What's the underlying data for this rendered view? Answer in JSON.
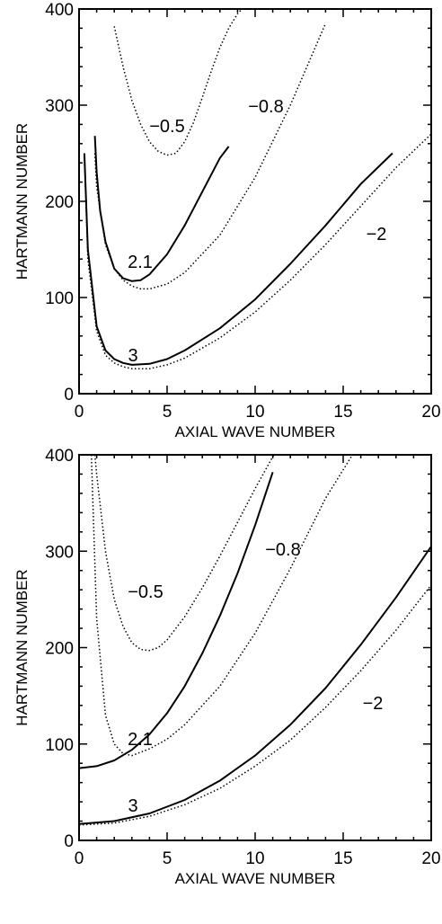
{
  "chart_data": [
    {
      "type": "line",
      "xlabel": "AXIAL WAVE NUMBER",
      "ylabel": "HARTMANN NUMBER",
      "xlim": [
        0,
        20
      ],
      "ylim": [
        0,
        400
      ],
      "xticks": [
        "0",
        "5",
        "10",
        "15",
        "20"
      ],
      "yticks": [
        "0",
        "100",
        "200",
        "300",
        "400"
      ],
      "grid": false,
      "series": [
        {
          "name": "-0.5",
          "style": "dotted",
          "x": [
            2.0,
            2.5,
            3.0,
            3.5,
            4.0,
            4.5,
            5.0,
            5.5,
            6.0,
            6.5,
            7.0,
            7.5,
            8.0,
            8.5,
            9.0,
            9.5
          ],
          "y": [
            382,
            340,
            305,
            280,
            262,
            252,
            248,
            250,
            262,
            282,
            308,
            335,
            360,
            380,
            395,
            405
          ]
        },
        {
          "name": "2.1",
          "style": "solid",
          "x": [
            0.9,
            1.0,
            1.2,
            1.5,
            2.0,
            2.5,
            3.0,
            3.5,
            4.0,
            5.0,
            6.0,
            7.0,
            8.0,
            8.5
          ],
          "y": [
            268,
            230,
            190,
            158,
            130,
            120,
            117,
            118,
            124,
            145,
            175,
            210,
            245,
            257
          ]
        },
        {
          "name": "-0.8",
          "style": "dotted",
          "x": [
            0.9,
            1.0,
            1.5,
            2.0,
            2.5,
            3.0,
            3.5,
            4.0,
            5.0,
            6.0,
            8.0,
            10.0,
            12.0,
            14.0
          ],
          "y": [
            250,
            215,
            155,
            130,
            118,
            112,
            109,
            109,
            114,
            126,
            165,
            225,
            300,
            385
          ]
        },
        {
          "name": "3",
          "style": "solid",
          "x": [
            0.3,
            0.5,
            1.0,
            1.5,
            2.0,
            2.5,
            3.0,
            4.0,
            5.0,
            6.0,
            8.0,
            10.0,
            12.0,
            14.0,
            16.0,
            17.8
          ],
          "y": [
            250,
            150,
            70,
            45,
            36,
            32,
            30,
            31,
            36,
            45,
            68,
            98,
            135,
            175,
            218,
            250
          ]
        },
        {
          "name": "-2",
          "style": "dotted",
          "x": [
            0.3,
            0.5,
            1.0,
            1.5,
            2.0,
            2.5,
            3.0,
            4.0,
            5.0,
            6.0,
            8.0,
            10.0,
            12.0,
            14.0,
            16.0,
            18.0,
            20.0
          ],
          "y": [
            250,
            140,
            65,
            40,
            32,
            28,
            26,
            26,
            30,
            37,
            58,
            85,
            118,
            155,
            195,
            235,
            270
          ]
        }
      ],
      "annotations": [
        "−0.5",
        "−0.8",
        "2.1",
        "−2",
        "3"
      ]
    },
    {
      "type": "line",
      "xlabel": "AXIAL WAVE NUMBER",
      "ylabel": "HARTMANN NUMBER",
      "xlim": [
        0,
        20
      ],
      "ylim": [
        0,
        400
      ],
      "xticks": [
        "0",
        "5",
        "10",
        "15",
        "20"
      ],
      "yticks": [
        "0",
        "100",
        "200",
        "300",
        "400"
      ],
      "grid": false,
      "series": [
        {
          "name": "-0.5",
          "style": "dotted",
          "x": [
            0.9,
            1.0,
            1.5,
            2.0,
            2.5,
            3.0,
            3.5,
            4.0,
            4.5,
            5.0,
            6.0,
            7.0,
            8.0,
            9.0,
            10.0,
            11.0,
            11.5
          ],
          "y": [
            400,
            380,
            300,
            250,
            222,
            205,
            198,
            197,
            200,
            208,
            232,
            262,
            295,
            330,
            365,
            398,
            410
          ]
        },
        {
          "name": "2.1",
          "style": "solid",
          "x": [
            0,
            1,
            2,
            3,
            4,
            5,
            6,
            7,
            8,
            9,
            10,
            11
          ],
          "y": [
            75,
            77,
            83,
            94,
            110,
            132,
            160,
            194,
            233,
            277,
            327,
            382
          ]
        },
        {
          "name": "-0.8",
          "style": "dotted",
          "x": [
            0.7,
            1.0,
            1.5,
            2.0,
            2.5,
            3.0,
            4.0,
            5.0,
            6.0,
            8.0,
            10.0,
            12.0,
            14.0,
            15.7
          ],
          "y": [
            400,
            230,
            130,
            100,
            90,
            88,
            95,
            105,
            120,
            160,
            215,
            282,
            355,
            405
          ]
        },
        {
          "name": "3",
          "style": "solid",
          "x": [
            0,
            2,
            4,
            6,
            8,
            10,
            12,
            14,
            16,
            18,
            20
          ],
          "y": [
            17,
            20,
            28,
            42,
            62,
            88,
            120,
            158,
            203,
            252,
            305
          ]
        },
        {
          "name": "-2",
          "style": "dotted",
          "x": [
            0,
            2,
            4,
            6,
            8,
            10,
            12,
            14,
            16,
            18,
            20
          ],
          "y": [
            16,
            18,
            25,
            37,
            54,
            77,
            104,
            138,
            176,
            218,
            265
          ]
        }
      ],
      "annotations": [
        "−0.5",
        "−0.8",
        "2.1",
        "−2",
        "3"
      ]
    }
  ]
}
